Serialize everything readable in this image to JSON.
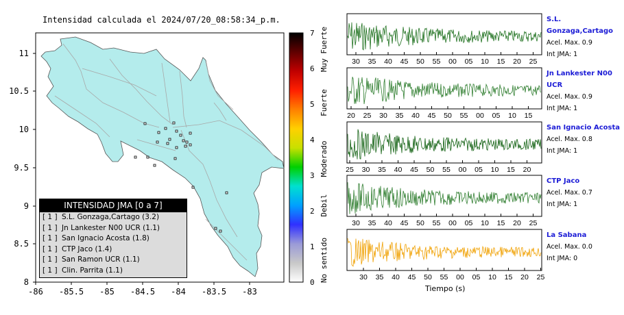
{
  "map": {
    "title": "Intensidad calculada el 2024/07/20_08:58:34_p.m.",
    "y_ticks": [
      "11",
      "10.5",
      "10",
      "9.5",
      "9",
      "8.5",
      "8"
    ],
    "x_ticks": [
      "-86",
      "-85.5",
      "-85",
      "-84.5",
      "-84",
      "-83.5",
      "-83"
    ],
    "land_color": "#b4ecec",
    "road_color": "#a8a8a8"
  },
  "scale": {
    "ticks": [
      "0",
      "1",
      "2",
      "3",
      "4",
      "5",
      "6",
      "7"
    ],
    "labels": [
      "No sentido",
      "Debil",
      "Moderado",
      "Fuerte",
      "Muy Fuerte"
    ],
    "colors": [
      "#ffffff",
      "#c8c8c8",
      "#9a9ad8",
      "#3030ff",
      "#00a0ff",
      "#00e0d0",
      "#00d000",
      "#c8e000",
      "#ffd000",
      "#ff8000",
      "#ff2000",
      "#c00000",
      "#600000",
      "#000000"
    ]
  },
  "legend": {
    "header": "INTENSIDAD JMA [0 a 7]",
    "rows": [
      {
        "grp": "[ 1 ]",
        "text": "S.L. Gonzaga,Cartago (3.2)"
      },
      {
        "grp": "[ 1 ]",
        "text": "Jn Lankester N00 UCR (1.1)"
      },
      {
        "grp": "[ 1 ]",
        "text": "San Ignacio Acosta (1.8)"
      },
      {
        "grp": "[ 1 ]",
        "text": "CTP Jaco (1.4)"
      },
      {
        "grp": "[ 1 ]",
        "text": "San Ramon UCR (1.1)"
      },
      {
        "grp": "[ 1 ]",
        "text": "Clin. Parrita (1.1)"
      }
    ]
  },
  "traces": {
    "x_axis_label": "Tiempo (s)",
    "stations": [
      {
        "name": "S.L. Gonzaga,Cartago",
        "accel": "Acel. Max. 0.9",
        "jma": "Int JMA: 1",
        "color": "#1a6e1a",
        "ticks": [
          "30",
          "35",
          "40",
          "45",
          "50",
          "55",
          "00",
          "05",
          "10",
          "15",
          "20",
          "25"
        ]
      },
      {
        "name": "Jn Lankester N00 UCR",
        "accel": "Acel. Max. 0.9",
        "jma": "Int JMA: 1",
        "color": "#2e7d2e",
        "ticks": [
          "20",
          "25",
          "30",
          "35",
          "40",
          "45",
          "50",
          "55",
          "00",
          "05",
          "10",
          "15"
        ]
      },
      {
        "name": "San Ignacio Acosta",
        "accel": "Acel. Max. 0.8",
        "jma": "Int JMA: 1",
        "color": "#0f5f0f",
        "ticks": [
          "25",
          "30",
          "35",
          "40",
          "45",
          "50",
          "55",
          "00",
          "05",
          "10",
          "15",
          "20"
        ]
      },
      {
        "name": "CTP Jaco",
        "accel": "Acel. Max. 0.7",
        "jma": "Int JMA: 1",
        "color": "#2e7d2e",
        "ticks": [
          "30",
          "35",
          "40",
          "45",
          "50",
          "55",
          "00",
          "05",
          "10",
          "15",
          "20",
          "25"
        ]
      },
      {
        "name": "La Sabana",
        "accel": "Acel. Max. 0.0",
        "jma": "Int JMA: 0",
        "color": "#f0a000",
        "ticks": [
          "30",
          "35",
          "40",
          "45",
          "50",
          "55",
          "00",
          "05",
          "10",
          "15",
          "20",
          "25"
        ]
      }
    ]
  }
}
